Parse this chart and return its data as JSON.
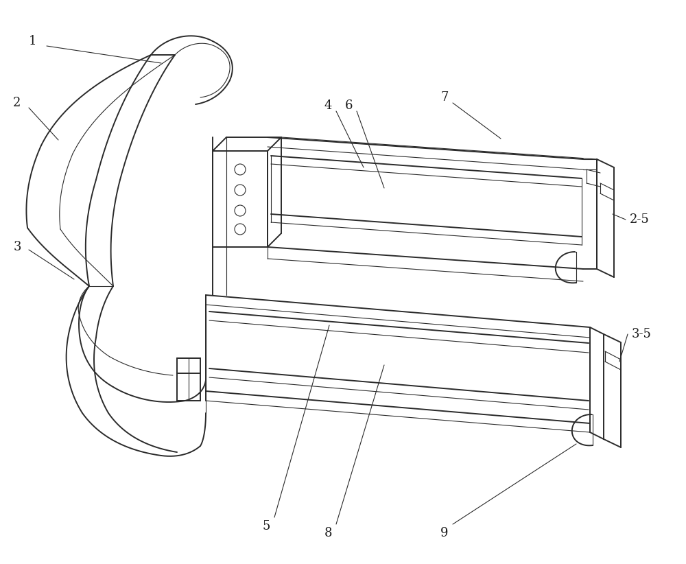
{
  "background_color": "#ffffff",
  "line_color": "#2a2a2a",
  "label_color": "#1a1a1a",
  "fig_width": 10.0,
  "fig_height": 8.22,
  "lw_main": 1.4,
  "lw_thin": 0.8,
  "lw_leader": 0.8
}
